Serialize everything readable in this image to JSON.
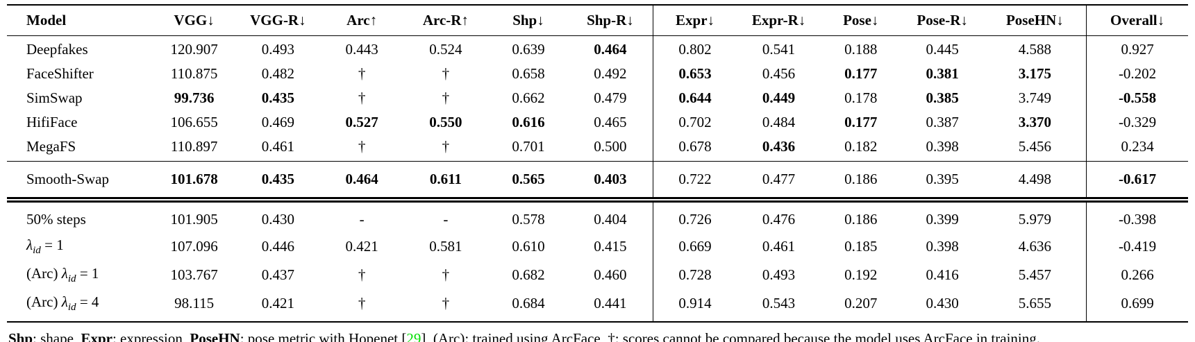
{
  "table": {
    "columns": [
      "Model",
      "VGG↓",
      "VGG-R↓",
      "Arc↑",
      "Arc-R↑",
      "Shp↓",
      "Shp-R↓",
      "Expr↓",
      "Expr-R↓",
      "Pose↓",
      "Pose-R↓",
      "PoseHN↓",
      "Overall↓"
    ],
    "separator_before_columns": [
      7,
      12
    ],
    "sections": [
      {
        "name": "baseline-models",
        "rows": [
          {
            "label": [
              {
                "t": "Deepfakes"
              }
            ],
            "cells": [
              {
                "v": "120.907"
              },
              {
                "v": "0.493"
              },
              {
                "v": "0.443"
              },
              {
                "v": "0.524"
              },
              {
                "v": "0.639"
              },
              {
                "v": "0.464",
                "b": true
              },
              {
                "v": "0.802"
              },
              {
                "v": "0.541"
              },
              {
                "v": "0.188"
              },
              {
                "v": "0.445"
              },
              {
                "v": "4.588"
              },
              {
                "v": "0.927"
              }
            ]
          },
          {
            "label": [
              {
                "t": "FaceShifter"
              }
            ],
            "cells": [
              {
                "v": "110.875"
              },
              {
                "v": "0.482"
              },
              {
                "v": "†"
              },
              {
                "v": "†"
              },
              {
                "v": "0.658"
              },
              {
                "v": "0.492"
              },
              {
                "v": "0.653",
                "b": true
              },
              {
                "v": "0.456"
              },
              {
                "v": "0.177",
                "b": true
              },
              {
                "v": "0.381",
                "b": true
              },
              {
                "v": "3.175",
                "b": true
              },
              {
                "v": "-0.202"
              }
            ]
          },
          {
            "label": [
              {
                "t": "SimSwap"
              }
            ],
            "cells": [
              {
                "v": "99.736",
                "b": true
              },
              {
                "v": "0.435",
                "b": true
              },
              {
                "v": "†"
              },
              {
                "v": "†"
              },
              {
                "v": "0.662"
              },
              {
                "v": "0.479"
              },
              {
                "v": "0.644",
                "b": true
              },
              {
                "v": "0.449",
                "b": true
              },
              {
                "v": "0.178"
              },
              {
                "v": "0.385",
                "b": true
              },
              {
                "v": "3.749"
              },
              {
                "v": "-0.558",
                "b": true
              }
            ]
          },
          {
            "label": [
              {
                "t": "HifiFace"
              }
            ],
            "cells": [
              {
                "v": "106.655"
              },
              {
                "v": "0.469"
              },
              {
                "v": "0.527",
                "b": true
              },
              {
                "v": "0.550",
                "b": true
              },
              {
                "v": "0.616",
                "b": true
              },
              {
                "v": "0.465"
              },
              {
                "v": "0.702"
              },
              {
                "v": "0.484"
              },
              {
                "v": "0.177",
                "b": true
              },
              {
                "v": "0.387"
              },
              {
                "v": "3.370",
                "b": true
              },
              {
                "v": "-0.329"
              }
            ]
          },
          {
            "label": [
              {
                "t": "MegaFS"
              }
            ],
            "cells": [
              {
                "v": "110.897"
              },
              {
                "v": "0.461"
              },
              {
                "v": "†"
              },
              {
                "v": "†"
              },
              {
                "v": "0.701"
              },
              {
                "v": "0.500"
              },
              {
                "v": "0.678"
              },
              {
                "v": "0.436",
                "b": true
              },
              {
                "v": "0.182"
              },
              {
                "v": "0.398"
              },
              {
                "v": "5.456"
              },
              {
                "v": "0.234"
              }
            ]
          }
        ]
      },
      {
        "name": "smooth-swap",
        "rows": [
          {
            "label": [
              {
                "t": "Smooth-Swap"
              }
            ],
            "cells": [
              {
                "v": "101.678",
                "b": true
              },
              {
                "v": "0.435",
                "b": true
              },
              {
                "v": "0.464",
                "b": true
              },
              {
                "v": "0.611",
                "b": true
              },
              {
                "v": "0.565",
                "b": true
              },
              {
                "v": "0.403",
                "b": true
              },
              {
                "v": "0.722"
              },
              {
                "v": "0.477"
              },
              {
                "v": "0.186"
              },
              {
                "v": "0.395"
              },
              {
                "v": "4.498"
              },
              {
                "v": "-0.617",
                "b": true
              }
            ]
          }
        ]
      },
      {
        "name": "ablations",
        "rows": [
          {
            "label": [
              {
                "t": "50% steps"
              }
            ],
            "cells": [
              {
                "v": "101.905"
              },
              {
                "v": "0.430"
              },
              {
                "v": "-"
              },
              {
                "v": "-"
              },
              {
                "v": "0.578"
              },
              {
                "v": "0.404"
              },
              {
                "v": "0.726"
              },
              {
                "v": "0.476"
              },
              {
                "v": "0.186"
              },
              {
                "v": "0.399"
              },
              {
                "v": "5.979"
              },
              {
                "v": "-0.398"
              }
            ]
          },
          {
            "label": [
              {
                "t": "λ",
                "i": true
              },
              {
                "t": "id",
                "i": true,
                "sub": true
              },
              {
                "t": " = 1"
              }
            ],
            "cells": [
              {
                "v": "107.096"
              },
              {
                "v": "0.446"
              },
              {
                "v": "0.421"
              },
              {
                "v": "0.581"
              },
              {
                "v": "0.610"
              },
              {
                "v": "0.415"
              },
              {
                "v": "0.669"
              },
              {
                "v": "0.461"
              },
              {
                "v": "0.185"
              },
              {
                "v": "0.398"
              },
              {
                "v": "4.636"
              },
              {
                "v": "-0.419"
              }
            ]
          },
          {
            "label": [
              {
                "t": "(Arc) "
              },
              {
                "t": "λ",
                "i": true
              },
              {
                "t": "id",
                "i": true,
                "sub": true
              },
              {
                "t": " = 1"
              }
            ],
            "cells": [
              {
                "v": "103.767"
              },
              {
                "v": "0.437"
              },
              {
                "v": "†"
              },
              {
                "v": "†"
              },
              {
                "v": "0.682"
              },
              {
                "v": "0.460"
              },
              {
                "v": "0.728"
              },
              {
                "v": "0.493"
              },
              {
                "v": "0.192"
              },
              {
                "v": "0.416"
              },
              {
                "v": "5.457"
              },
              {
                "v": "0.266"
              }
            ]
          },
          {
            "label": [
              {
                "t": "(Arc) "
              },
              {
                "t": "λ",
                "i": true
              },
              {
                "t": "id",
                "i": true,
                "sub": true
              },
              {
                "t": " = 4"
              }
            ],
            "cells": [
              {
                "v": "98.115"
              },
              {
                "v": "0.421"
              },
              {
                "v": "†"
              },
              {
                "v": "†"
              },
              {
                "v": "0.684"
              },
              {
                "v": "0.441"
              },
              {
                "v": "0.914"
              },
              {
                "v": "0.543"
              },
              {
                "v": "0.207"
              },
              {
                "v": "0.430"
              },
              {
                "v": "5.655"
              },
              {
                "v": "0.699"
              }
            ]
          }
        ]
      }
    ]
  },
  "footnote": {
    "citation_color": "#00DD00",
    "segments": [
      {
        "t": "Shp",
        "b": true
      },
      {
        "t": ": shape, "
      },
      {
        "t": "Expr",
        "b": true
      },
      {
        "t": ": expression, "
      },
      {
        "t": "PoseHN",
        "b": true
      },
      {
        "t": ": pose metric with Hopenet ["
      },
      {
        "t": "29",
        "c": "#00DD00",
        "name": "citation-29"
      },
      {
        "t": "], (Arc): trained using ArcFace, †: scores cannot be compared because the model uses ArcFace in training."
      }
    ]
  }
}
